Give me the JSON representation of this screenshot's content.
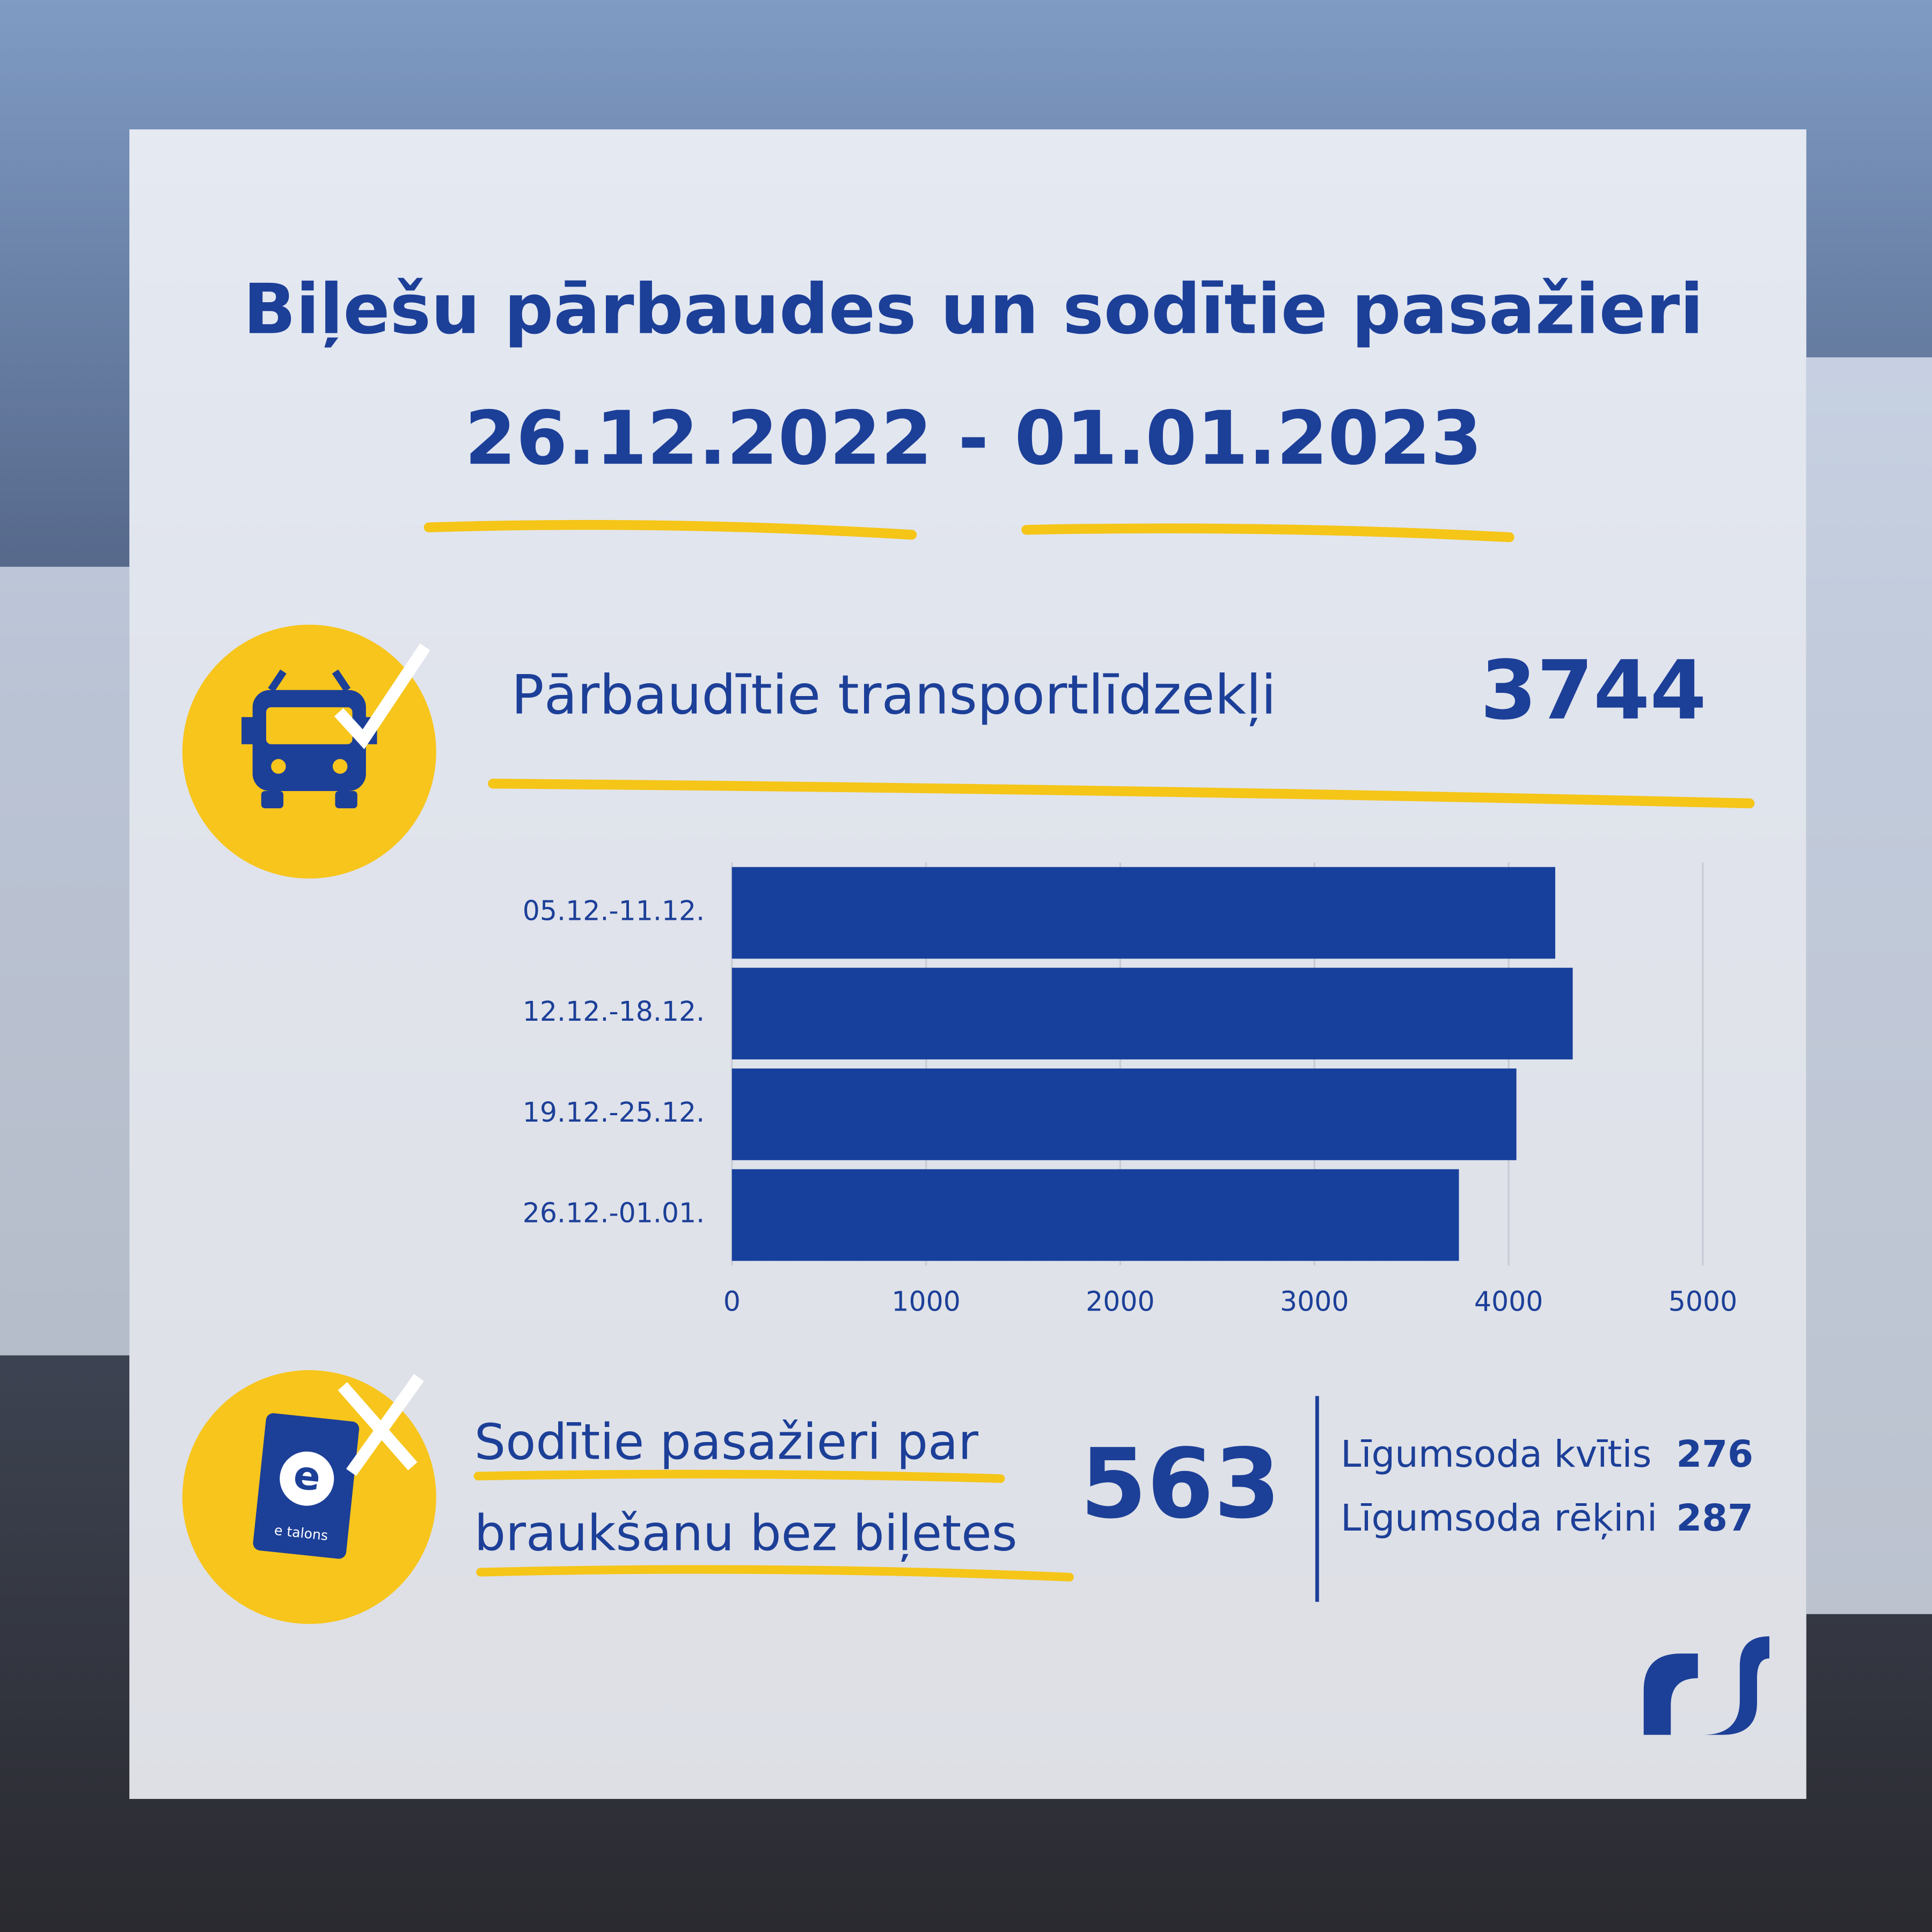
{
  "title_lines": [
    "Biļešu pārbaudes un sodītie pasažieri",
    "26.12.2022 - 01.01.2023"
  ],
  "vehicles": {
    "label": "Pārbaudītie transportlīdzekļi",
    "value": "3744"
  },
  "fined": {
    "label_lines": [
      "Sodītie pasažieri par",
      "braukšanu bez biļetes"
    ],
    "value": "563",
    "breakdown": [
      {
        "label": "Līgumsoda kvītis",
        "value": "276"
      },
      {
        "label": "Līgumsoda rēķini",
        "value": "287"
      }
    ]
  },
  "card_label": "e talons",
  "chart_data": {
    "type": "bar",
    "orientation": "horizontal",
    "categories": [
      "05.12.-11.12.",
      "12.12.-18.12.",
      "19.12.-25.12.",
      "26.12.-01.01."
    ],
    "values": [
      4240,
      4330,
      4040,
      3744
    ],
    "color": "#17409c",
    "xlim": [
      0,
      5000
    ],
    "xticks": [
      0,
      1000,
      2000,
      3000,
      4000,
      5000
    ],
    "grid": true
  }
}
